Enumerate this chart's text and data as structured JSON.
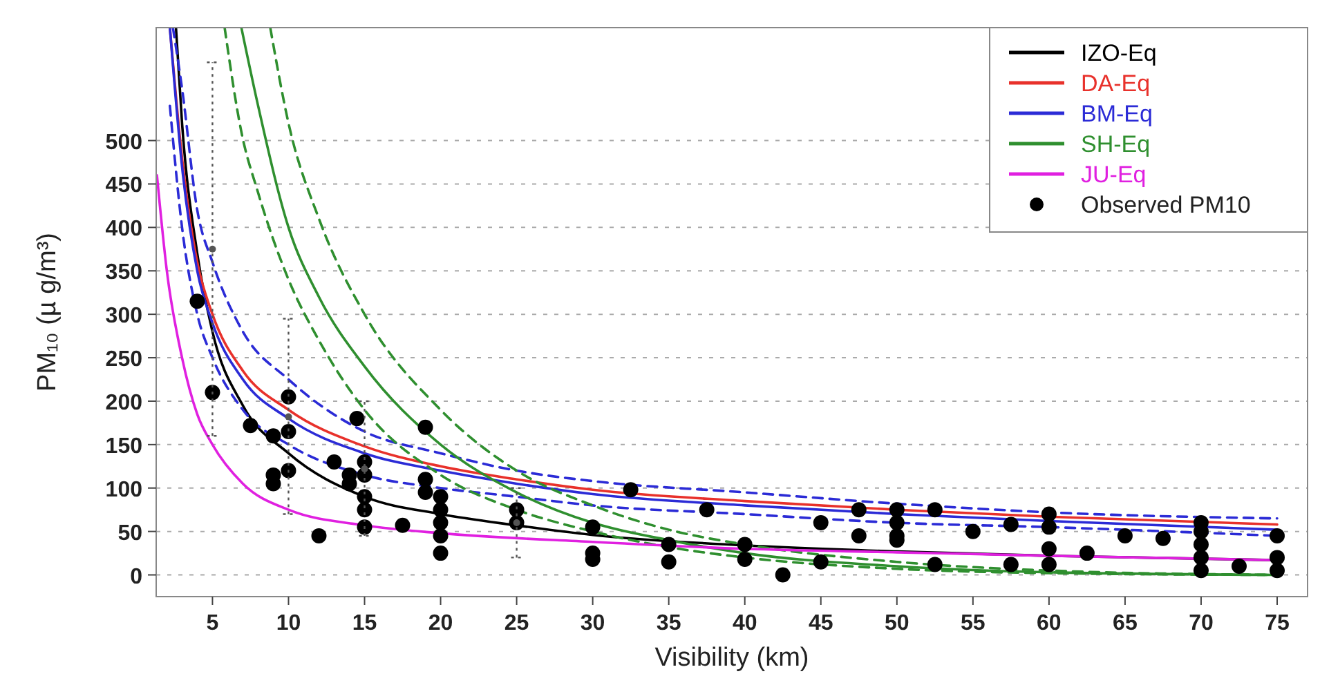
{
  "chart_data": {
    "type": "line",
    "xlabel": "Visibility (km)",
    "ylabel": "PM₁₀ (µ g/m³)",
    "xlim": [
      1.3,
      77
    ],
    "ylim": [
      -25,
      630
    ],
    "xticks": [
      5,
      10,
      15,
      20,
      25,
      30,
      35,
      40,
      45,
      50,
      55,
      60,
      65,
      70,
      75
    ],
    "yticks": [
      0,
      50,
      100,
      150,
      200,
      250,
      300,
      350,
      400,
      450,
      500
    ],
    "grid": "y",
    "legend": "top right",
    "series": [
      {
        "name": "IZO-Eq",
        "color": "#000000",
        "x": [
          2.6,
          3,
          4,
          5,
          7,
          10,
          15,
          20,
          25,
          30,
          40,
          50,
          60,
          75
        ],
        "values": [
          630,
          520,
          370,
          280,
          195,
          140,
          90,
          70,
          57,
          46,
          34,
          27,
          22,
          17
        ]
      },
      {
        "name": "DA-Eq",
        "color": "#e8312b",
        "x": [
          2.2,
          3,
          4,
          5,
          7,
          10,
          15,
          20,
          25,
          30,
          40,
          50,
          60,
          75
        ],
        "values": [
          630,
          480,
          360,
          300,
          235,
          190,
          148,
          125,
          110,
          98,
          85,
          75,
          67,
          58
        ]
      },
      {
        "name": "BM-Eq",
        "color": "#2b2bd6",
        "x": [
          2.2,
          3,
          4,
          5,
          7,
          10,
          15,
          20,
          25,
          30,
          40,
          50,
          60,
          75
        ],
        "values": [
          630,
          470,
          350,
          290,
          225,
          180,
          140,
          120,
          105,
          93,
          80,
          70,
          62,
          52
        ]
      },
      {
        "color": "#2b2bd6",
        "line_style": "dashed",
        "x": [
          2.2,
          3,
          4,
          5,
          7,
          10,
          15,
          20,
          25,
          30,
          40,
          50,
          60,
          75
        ],
        "values": [
          540,
          400,
          300,
          250,
          190,
          150,
          115,
          100,
          90,
          80,
          70,
          60,
          55,
          45
        ]
      },
      {
        "color": "#2b2bd6",
        "line_style": "dashed",
        "x": [
          2.4,
          3,
          4,
          5,
          7,
          10,
          15,
          20,
          25,
          30,
          40,
          50,
          60,
          75
        ],
        "values": [
          630,
          560,
          420,
          360,
          280,
          225,
          165,
          140,
          120,
          108,
          95,
          82,
          72,
          65
        ]
      },
      {
        "name": "SH-Eq",
        "color": "#2f8f2f",
        "x": [
          6.9,
          8,
          10,
          12,
          15,
          20,
          25,
          30,
          35,
          40,
          50,
          60,
          75
        ],
        "values": [
          630,
          540,
          400,
          320,
          240,
          150,
          95,
          60,
          40,
          25,
          10,
          3,
          0
        ]
      },
      {
        "color": "#2f8f2f",
        "line_style": "dashed",
        "x": [
          5.8,
          6.9,
          8,
          10,
          12,
          15,
          20,
          25,
          30,
          35,
          40,
          50,
          60,
          75
        ],
        "values": [
          630,
          510,
          440,
          340,
          270,
          190,
          115,
          75,
          50,
          32,
          20,
          7,
          2,
          0
        ]
      },
      {
        "color": "#2f8f2f",
        "line_style": "dashed",
        "x": [
          8.8,
          10,
          12,
          15,
          20,
          25,
          30,
          35,
          40,
          50,
          60,
          75
        ],
        "values": [
          630,
          520,
          410,
          300,
          190,
          120,
          80,
          52,
          35,
          15,
          5,
          0
        ]
      },
      {
        "name": "JU-Eq",
        "color": "#e020e0",
        "x": [
          1.35,
          2,
          3,
          4,
          5,
          7,
          10,
          15,
          20,
          30,
          40,
          50,
          60,
          75
        ],
        "values": [
          460,
          350,
          250,
          185,
          150,
          105,
          75,
          57,
          48,
          38,
          30,
          26,
          22,
          17
        ]
      },
      {
        "name": "Observed PM10",
        "color": "#000000",
        "type": "scatter",
        "marker": "circle",
        "x": [
          4,
          5,
          7.5,
          9,
          9,
          9,
          10,
          10,
          10,
          12,
          13,
          14,
          14,
          14.5,
          15,
          15,
          15,
          15,
          15,
          17.5,
          19,
          19,
          19,
          20,
          20,
          20,
          20,
          20,
          25,
          25,
          30,
          30,
          30,
          32.5,
          35,
          35,
          37.5,
          40,
          40,
          42.5,
          45,
          45,
          47.5,
          47.5,
          50,
          50,
          50,
          50,
          52.5,
          52.5,
          55,
          57.5,
          57.5,
          60,
          60,
          60,
          60,
          62.5,
          65,
          67.5,
          70,
          70,
          70,
          70,
          70,
          72.5,
          75,
          75,
          75
        ],
        "values": [
          315,
          210,
          172,
          160,
          105,
          115,
          205,
          165,
          120,
          45,
          130,
          115,
          105,
          180,
          130,
          115,
          90,
          75,
          55,
          57,
          170,
          110,
          95,
          90,
          75,
          60,
          45,
          25,
          75,
          60,
          55,
          25,
          18,
          98,
          35,
          15,
          75,
          35,
          18,
          0,
          60,
          15,
          45,
          75,
          75,
          60,
          45,
          40,
          75,
          12,
          50,
          58,
          12,
          70,
          55,
          30,
          12,
          25,
          45,
          42,
          60,
          50,
          35,
          20,
          5,
          10,
          45,
          20,
          5
        ]
      },
      {
        "color": "#555555",
        "type": "scatter",
        "marker": "circle",
        "line_style": "dotted",
        "x": [
          5,
          10,
          15,
          25
        ],
        "values": [
          375,
          182,
          122,
          60
        ],
        "errors": [
          [
            160,
            590
          ],
          [
            70,
            295
          ],
          [
            45,
            200
          ],
          [
            20,
            100
          ]
        ]
      }
    ]
  }
}
